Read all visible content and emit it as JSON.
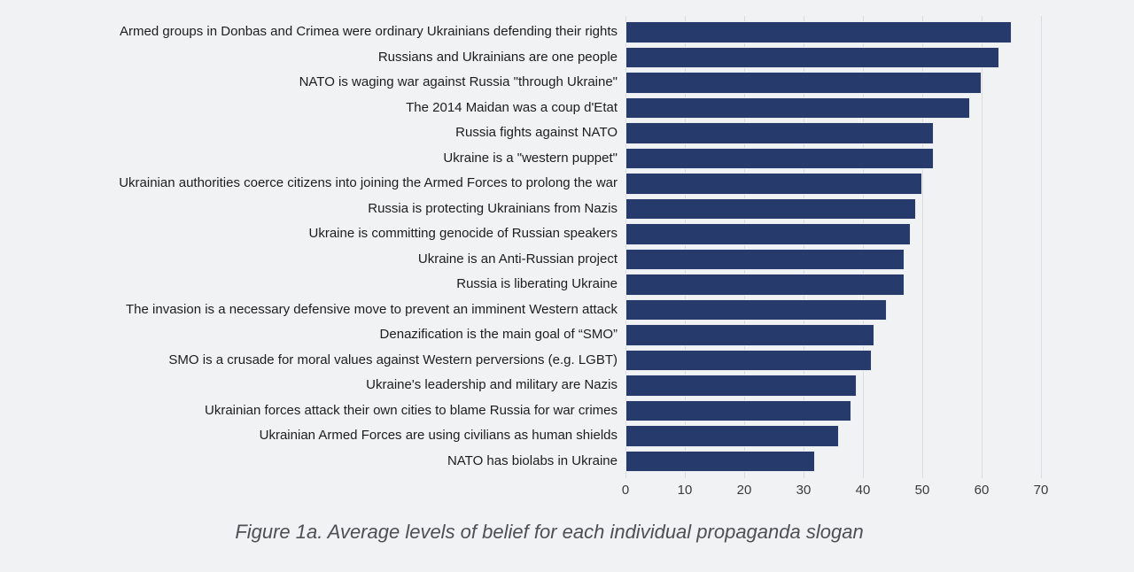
{
  "page": {
    "background_color": "#f1f2f4"
  },
  "caption": "Figure 1a. Average levels of belief for each individual propaganda slogan",
  "chart_data": {
    "type": "bar",
    "orientation": "horizontal",
    "title": "",
    "xlabel": "",
    "ylabel": "",
    "categories": [
      "Armed groups in Donbas and Crimea were ordinary Ukrainians defending their rights",
      "Russians and Ukrainians are one people",
      "NATO is waging war against Russia \"through Ukraine\"",
      "The 2014 Maidan was a coup d'Etat",
      "Russia fights against NATO",
      "Ukraine is a \"western puppet\"",
      "Ukrainian authorities coerce citizens into joining the Armed Forces to prolong the war",
      "Russia is protecting Ukrainians from Nazis",
      "Ukraine is committing genocide of Russian speakers",
      "Ukraine is an Anti-Russian project",
      "Russia is liberating Ukraine",
      "The invasion is a necessary defensive move to prevent an imminent Western attack",
      "Denazification is the main goal of “SMO”",
      "SMO is a crusade for moral values against Western perversions (e.g. LGBT)",
      "Ukraine's leadership and military are Nazis",
      "Ukrainian forces attack their own cities to blame Russia for war crimes",
      "Ukrainian Armed Forces are using civilians as human shields",
      "NATO has biolabs in Ukraine"
    ],
    "values": [
      65,
      63,
      60,
      58,
      52,
      52,
      50,
      49,
      48,
      47,
      47,
      44,
      42,
      41.5,
      39,
      38,
      36,
      32
    ],
    "xlim": [
      0,
      70
    ],
    "xticks": [
      0,
      10,
      20,
      30,
      40,
      50,
      60,
      70
    ],
    "grid": true,
    "legend": false,
    "bar_color": "#263a6c",
    "gridline_color": "#d9dbdf"
  }
}
